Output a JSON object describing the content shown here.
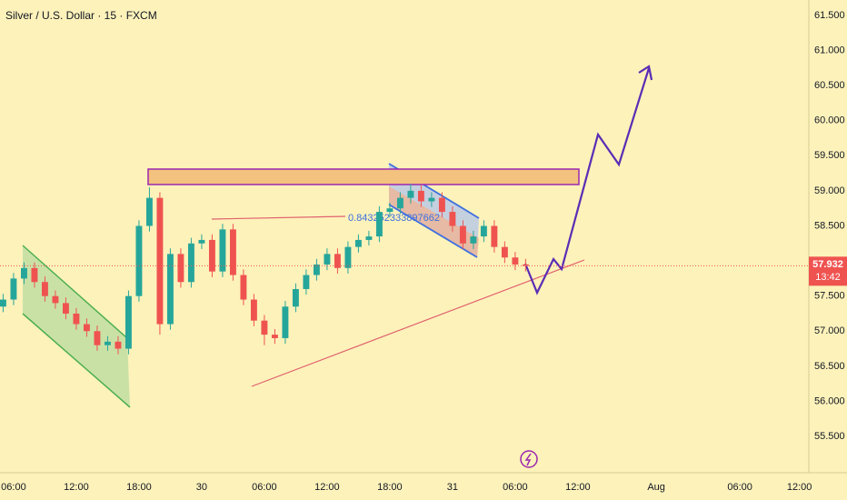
{
  "chart_data": {
    "type": "candlestick",
    "title": "Silver / U.S. Dollar · 15 · FXCM",
    "annotation": "0.843252333897662",
    "last_price": 57.932,
    "countdown": "13:42",
    "x": [
      -1,
      0,
      1,
      2,
      3,
      4,
      5,
      6,
      7,
      8,
      9,
      10,
      11,
      12,
      13,
      14,
      15,
      16,
      17,
      18,
      19,
      20,
      21,
      22,
      23,
      24,
      25,
      26,
      27,
      28,
      29,
      30,
      31,
      32,
      33,
      34,
      35,
      36,
      37,
      38,
      39,
      40,
      41,
      42,
      43,
      44,
      45,
      46,
      47,
      48,
      49
    ],
    "open": [
      57.35,
      57.45,
      57.75,
      57.9,
      57.7,
      57.5,
      57.4,
      57.25,
      57.1,
      57.0,
      56.8,
      56.85,
      56.75,
      57.5,
      58.5,
      58.9,
      57.1,
      58.1,
      57.7,
      58.25,
      58.3,
      57.85,
      58.45,
      57.8,
      57.45,
      57.15,
      56.95,
      56.9,
      57.35,
      57.6,
      57.8,
      57.95,
      58.1,
      57.9,
      58.2,
      58.3,
      58.35,
      58.7,
      58.75,
      58.9,
      59.0,
      58.85,
      58.9,
      58.7,
      58.5,
      58.25,
      58.35,
      58.5,
      58.2,
      58.05,
      57.95
    ],
    "high": [
      57.53,
      57.83,
      57.98,
      57.98,
      57.78,
      57.58,
      57.48,
      57.33,
      57.18,
      57.08,
      56.93,
      56.93,
      57.58,
      58.58,
      59.05,
      58.98,
      58.18,
      58.18,
      58.33,
      58.38,
      58.38,
      58.53,
      58.53,
      57.88,
      57.53,
      57.23,
      57.03,
      57.43,
      57.68,
      57.88,
      58.03,
      58.18,
      58.18,
      58.28,
      58.38,
      58.43,
      58.78,
      58.83,
      58.98,
      59.1,
      59.08,
      58.98,
      58.98,
      58.78,
      58.58,
      58.43,
      58.58,
      58.58,
      58.28,
      58.13,
      58.03
    ],
    "low": [
      57.27,
      57.37,
      57.67,
      57.62,
      57.42,
      57.32,
      57.17,
      57.02,
      56.92,
      56.72,
      56.72,
      56.67,
      56.67,
      57.42,
      58.42,
      56.95,
      57.02,
      57.62,
      57.62,
      58.17,
      57.77,
      57.77,
      57.72,
      57.37,
      57.07,
      56.8,
      56.82,
      56.82,
      57.27,
      57.52,
      57.72,
      57.87,
      57.82,
      57.82,
      58.12,
      58.22,
      58.27,
      58.62,
      58.67,
      58.82,
      58.77,
      58.77,
      58.62,
      58.42,
      58.17,
      58.17,
      58.27,
      58.12,
      57.97,
      57.87,
      57.85
    ],
    "close": [
      57.45,
      57.75,
      57.9,
      57.7,
      57.5,
      57.4,
      57.25,
      57.1,
      57.0,
      56.8,
      56.85,
      56.75,
      57.5,
      58.5,
      58.9,
      57.1,
      58.1,
      57.7,
      58.25,
      58.3,
      57.85,
      58.45,
      57.8,
      57.45,
      57.15,
      56.95,
      56.9,
      57.35,
      57.6,
      57.8,
      57.95,
      58.1,
      57.9,
      58.2,
      58.3,
      58.35,
      58.7,
      58.75,
      58.9,
      59.0,
      58.85,
      58.9,
      58.7,
      58.5,
      58.25,
      58.35,
      58.5,
      58.2,
      58.05,
      57.95,
      57.932
    ],
    "up_color": "#26a69a",
    "down_color": "#ef5350",
    "ylim": [
      55.28,
      61.72
    ],
    "yticks": [
      {
        "value": 55.5,
        "label": "55.500"
      },
      {
        "value": 56,
        "label": "56.000"
      },
      {
        "value": 56.5,
        "label": "56.500"
      },
      {
        "value": 57,
        "label": "57.000"
      },
      {
        "value": 57.5,
        "label": "57.500"
      },
      {
        "value": 58.5,
        "label": "58.500"
      },
      {
        "value": 59,
        "label": "59.000"
      },
      {
        "value": 59.5,
        "label": "59.500"
      },
      {
        "value": 60,
        "label": "60.000"
      },
      {
        "value": 60.5,
        "label": "60.500"
      },
      {
        "value": 61,
        "label": "61.000"
      },
      {
        "value": 61.5,
        "label": "61.500"
      }
    ],
    "xlim": [
      -1.3,
      76.1
    ],
    "xticks": [
      {
        "value": 0,
        "label": "06:00"
      },
      {
        "value": 6,
        "label": "12:00"
      },
      {
        "value": 12,
        "label": "18:00"
      },
      {
        "value": 18,
        "label": "30"
      },
      {
        "value": 24,
        "label": "06:00"
      },
      {
        "value": 30,
        "label": "12:00"
      },
      {
        "value": 36,
        "label": "18:00"
      },
      {
        "value": 42,
        "label": "31"
      },
      {
        "value": 48,
        "label": "06:00"
      },
      {
        "value": 54,
        "label": "12:00"
      },
      {
        "value": 61.5,
        "label": "Aug"
      },
      {
        "value": 69.5,
        "label": "06:00"
      },
      {
        "value": 75.2,
        "label": "12:00"
      }
    ]
  }
}
